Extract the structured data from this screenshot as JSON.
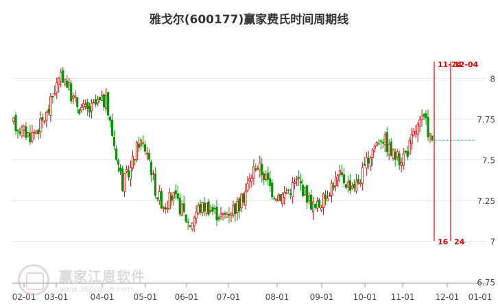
{
  "chart_data": {
    "type": "candlestick",
    "title": "雅戈尔(600177)赢家费氏时间周期线",
    "ylim": [
      6.75,
      8.25
    ],
    "y_ticks": [
      {
        "value": 8,
        "label": "8"
      },
      {
        "value": 7.75,
        "label": "7.75"
      },
      {
        "value": 7.5,
        "label": "7.5"
      },
      {
        "value": 7.25,
        "label": "7.25"
      },
      {
        "value": 7,
        "label": "7"
      },
      {
        "value": 6.75,
        "label": "6.75"
      }
    ],
    "x_ticks": [
      "02-01",
      "03-01",
      "04-01",
      "05-01",
      "06-01",
      "07-01",
      "08-01",
      "09-01",
      "10-01",
      "11-01",
      "12-01",
      "01-01"
    ],
    "close_trend": [
      7.72,
      7.68,
      7.65,
      7.7,
      7.78,
      7.95,
      8.02,
      7.88,
      7.82,
      7.8,
      7.85,
      7.86,
      7.6,
      7.35,
      7.45,
      7.62,
      7.55,
      7.3,
      7.22,
      7.28,
      7.2,
      7.1,
      7.2,
      7.22,
      7.18,
      7.15,
      7.2,
      7.22,
      7.35,
      7.48,
      7.4,
      7.3,
      7.28,
      7.32,
      7.38,
      7.28,
      7.2,
      7.25,
      7.35,
      7.4,
      7.35,
      7.35,
      7.45,
      7.58,
      7.65,
      7.55,
      7.5,
      7.55,
      7.68,
      7.75,
      7.62
    ],
    "last_close": 7.62,
    "current_price_line": 7.62,
    "cycle_lines": [
      {
        "label": "11-24",
        "count": "16",
        "color": "#e60000"
      },
      {
        "label": "12-04",
        "count": "24",
        "color": "#e60000"
      }
    ],
    "up_color": "#e60000",
    "down_color": "#009900",
    "grid": true
  },
  "watermark": {
    "text": "赢家江恩软件",
    "url": "www.360cgjun.com"
  }
}
